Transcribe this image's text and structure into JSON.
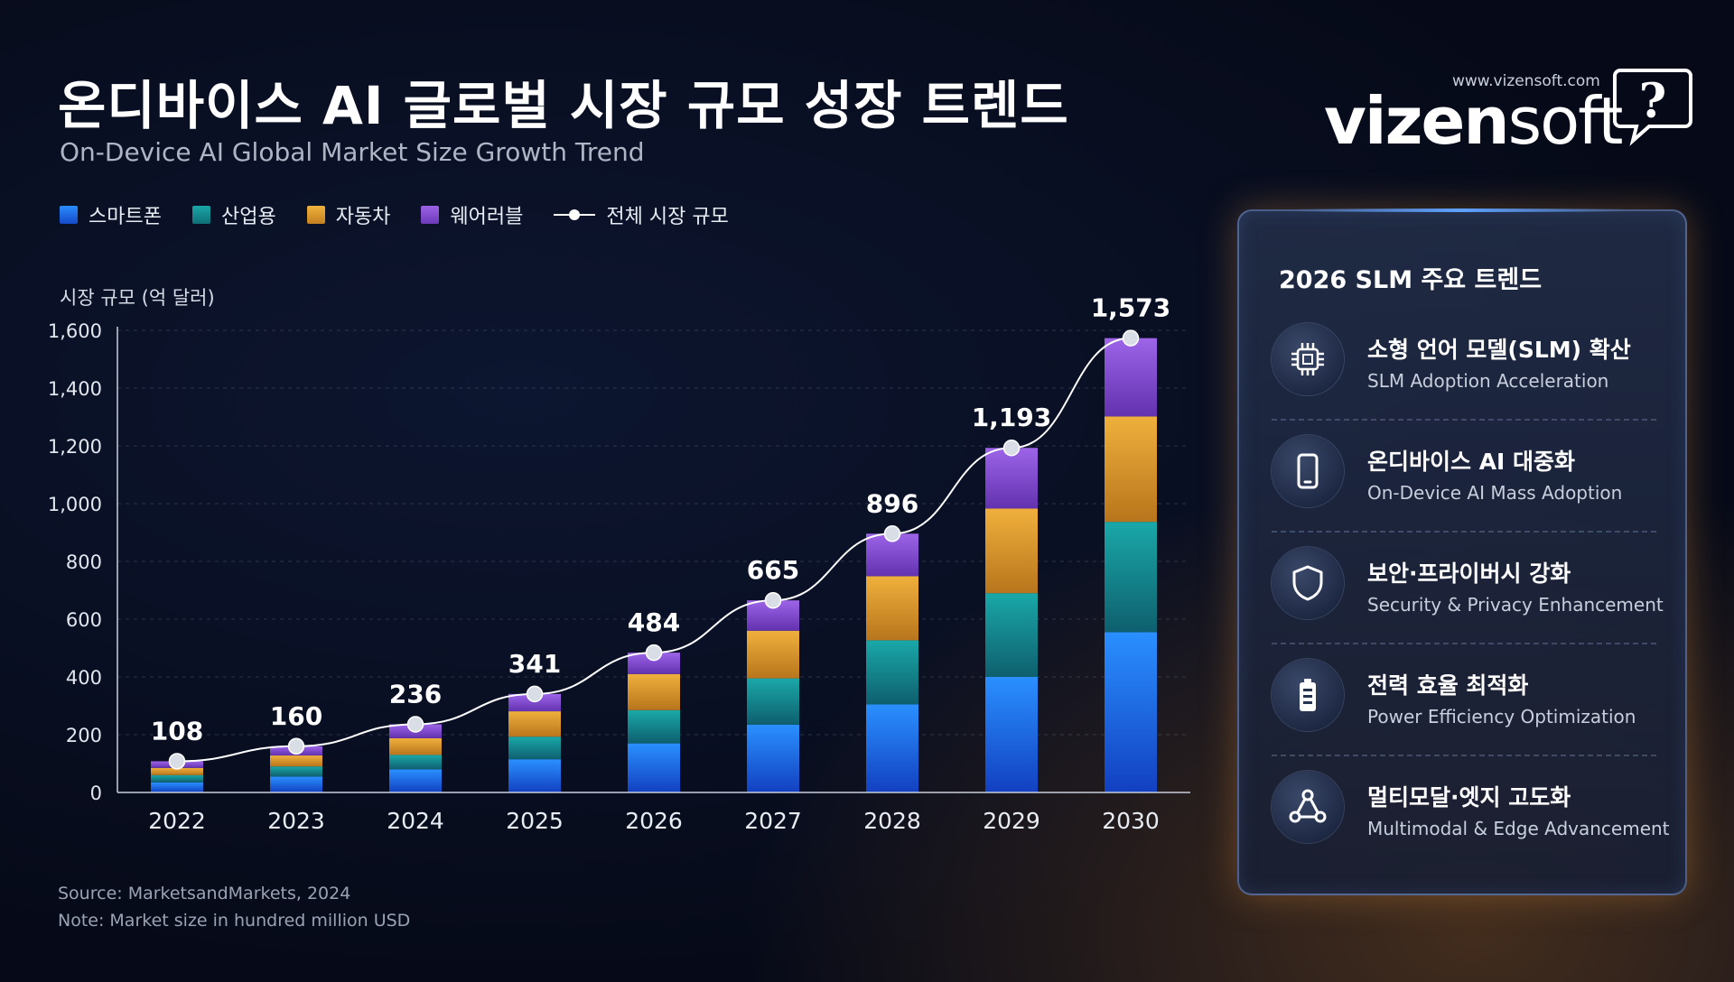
{
  "header": {
    "title": "온디바이스 AI 글로벌 시장 규모 성장 트렌드",
    "subtitle": "On-Device AI Global Market Size Growth Trend"
  },
  "legend": {
    "smartphone": "스마트폰",
    "industrial": "산업용",
    "automotive": "자동차",
    "wearable": "웨어러블",
    "total": "전체 시장 규모"
  },
  "brand": {
    "url": "www.vizensoft.com",
    "name_bold": "vizen",
    "name_light": "soft"
  },
  "footer": {
    "source": "Source: MarketsandMarkets, 2024",
    "note": "Note: Market size in hundred million USD"
  },
  "colors": {
    "smartphone": "#1e7cf2",
    "industrial": "#149a9c",
    "automotive": "#e3a234",
    "wearable": "#8b55d6",
    "line": "#ffffff"
  },
  "chart_data": {
    "type": "bar",
    "stacked": true,
    "categories": [
      "2022",
      "2023",
      "2024",
      "2025",
      "2026",
      "2027",
      "2028",
      "2029",
      "2030"
    ],
    "ylabel": "시장 규모 (억 달러)",
    "ylim": [
      0,
      1600
    ],
    "yticks": [
      0,
      200,
      400,
      600,
      800,
      1000,
      1200,
      1400,
      1600
    ],
    "ytick_labels": [
      "0",
      "200",
      "400",
      "600",
      "800",
      "1,000",
      "1,200",
      "1,400",
      "1,600"
    ],
    "grid": true,
    "series": [
      {
        "name": "스마트폰",
        "values": [
          35,
          55,
          80,
          115,
          170,
          235,
          305,
          400,
          555
        ]
      },
      {
        "name": "산업용",
        "values": [
          25,
          35,
          50,
          78,
          115,
          160,
          222,
          290,
          382
        ]
      },
      {
        "name": "자동차",
        "values": [
          25,
          38,
          58,
          88,
          125,
          165,
          222,
          293,
          365
        ]
      },
      {
        "name": "웨어러블",
        "values": [
          23,
          32,
          48,
          60,
          74,
          105,
          147,
          210,
          271
        ]
      }
    ],
    "line": {
      "name": "전체 시장 규모",
      "values": [
        108,
        160,
        236,
        341,
        484,
        665,
        896,
        1193,
        1573
      ]
    },
    "line_labels": [
      "108",
      "160",
      "236",
      "341",
      "484",
      "665",
      "896",
      "1,193",
      "1,573"
    ]
  },
  "panel": {
    "title": "2026 SLM 주요 트렌드",
    "items": [
      {
        "icon": "chip-icon",
        "kr": "소형 언어 모델(SLM) 확산",
        "en": "SLM Adoption Acceleration"
      },
      {
        "icon": "smartphone-icon",
        "kr": "온디바이스 AI 대중화",
        "en": "On-Device AI Mass Adoption"
      },
      {
        "icon": "shield-icon",
        "kr": "보안·프라이버시 강화",
        "en": "Security & Privacy Enhancement"
      },
      {
        "icon": "battery-icon",
        "kr": "전력 효율 최적화",
        "en": "Power Efficiency Optimization"
      },
      {
        "icon": "network-icon",
        "kr": "멀티모달·엣지 고도화",
        "en": "Multimodal & Edge Advancement"
      }
    ]
  }
}
